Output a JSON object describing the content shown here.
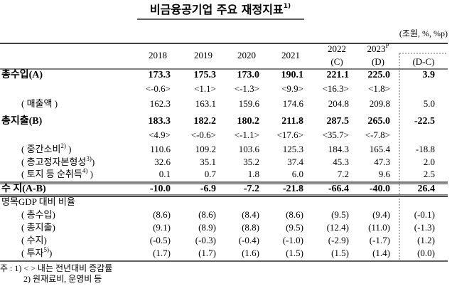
{
  "header": {
    "title": "비금융공기업 주요 재정지표",
    "title_note": "1)",
    "unit": "(조원, %, %p)"
  },
  "table": {
    "columns": [
      {
        "year": "2018"
      },
      {
        "year": "2019"
      },
      {
        "year": "2020"
      },
      {
        "year": "2021"
      },
      {
        "year": "2022",
        "sub": "(C)"
      },
      {
        "year": "2023",
        "sup": "P",
        "sub": "(D)"
      },
      {
        "label": "(D-C)"
      }
    ],
    "rows": [
      {
        "label": "총수입(A)",
        "values": [
          "173.3",
          "175.3",
          "173.0",
          "190.1",
          "221.1",
          "225.0",
          "3.9"
        ]
      },
      {
        "values": [
          "<-0.6>",
          "<1.1>",
          "<-1.3>",
          "<9.9>",
          "<16.3>",
          "<1.8>"
        ]
      },
      {
        "label": "( 매출액 )",
        "values": [
          "162.3",
          "163.1",
          "159.6",
          "174.6",
          "204.8",
          "209.8",
          "5.0"
        ]
      },
      {
        "label": "총지출(B)",
        "values": [
          "183.3",
          "182.2",
          "180.2",
          "211.8",
          "287.5",
          "265.0",
          "-22.5"
        ]
      },
      {
        "values": [
          "<4.9>",
          "<-0.6>",
          "<-1.1>",
          "<17.6>",
          "<35.7>",
          "<-7.8>"
        ]
      },
      {
        "label": "( 중간소비",
        "sup": "2)",
        "close": " )",
        "values": [
          "110.6",
          "109.2",
          "103.6",
          "125.3",
          "184.3",
          "165.4",
          "-18.8"
        ]
      },
      {
        "label": "( 총고정자본형성",
        "sup": "3)",
        "close": ")",
        "values": [
          "32.6",
          "35.1",
          "35.2",
          "37.4",
          "45.3",
          "47.3",
          "2.0"
        ]
      },
      {
        "label": "( 토지 등 순취득",
        "sup": "4)",
        "close": " )",
        "values": [
          "0.1",
          "0.7",
          "1.8",
          "6.0",
          "7.2",
          "9.6",
          "2.5"
        ]
      },
      {
        "label": "수 지(A-B)",
        "values": [
          "-10.0",
          "-6.9",
          "-7.2",
          "-21.8",
          "-66.4",
          "-40.0",
          "26.4"
        ]
      },
      {
        "label": "명목GDP 대비 비율"
      },
      {
        "label": "( 총수입)",
        "values": [
          "(8.6)",
          "(8.6)",
          "(8.4)",
          "(8.6)",
          "(9.5)",
          "(9.4)",
          "(-0.1)"
        ]
      },
      {
        "label": "( 총지출)",
        "values": [
          "(9.1)",
          "(8.9)",
          "(8.8)",
          "(9.5)",
          "(12.4)",
          "(11.0)",
          "(-1.3)"
        ]
      },
      {
        "label": "( 수지)",
        "values": [
          "(-0.5)",
          "(-0.3)",
          "(-0.4)",
          "(-1.0)",
          "(-2.9)",
          "(-1.7)",
          "(1.2)"
        ]
      },
      {
        "label": "( 투자",
        "sup": "5)",
        "close": ")",
        "values": [
          "(1.7)",
          "(1.7)",
          "(1.6)",
          "(1.5)",
          "(1.5)",
          "(1.4)",
          "(0.0)"
        ]
      }
    ]
  },
  "notes": [
    "주 : 1) < > 내는 전년대비 증감률",
    "2) 원재료비, 운영비 등"
  ]
}
